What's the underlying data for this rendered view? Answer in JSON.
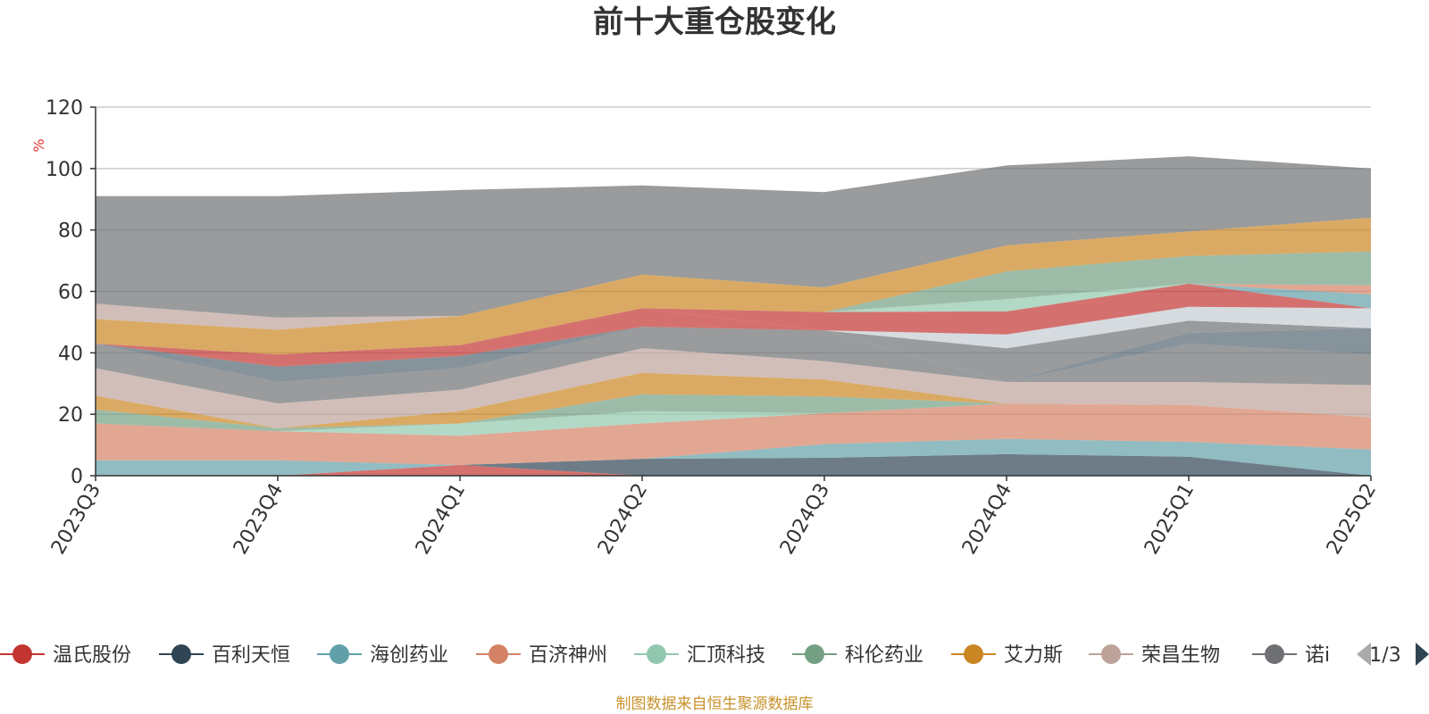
{
  "chart_data": {
    "type": "area",
    "title": "前十大重仓股变化",
    "ylabel": "%",
    "xlabel": "",
    "ylim": [
      0,
      120
    ],
    "yticks": [
      0,
      20,
      40,
      60,
      80,
      100,
      120
    ],
    "grid": true,
    "stacked": true,
    "categories": [
      "2023Q3",
      "2023Q4",
      "2024Q1",
      "2024Q2",
      "2024Q3",
      "2024Q4",
      "2025Q1",
      "2025Q2"
    ],
    "series": [
      {
        "name": "温氏股份",
        "color": "#c23531",
        "values": [
          0,
          0,
          3.5,
          0,
          0,
          0,
          0,
          0
        ]
      },
      {
        "name": "百利天恒",
        "color": "#2f4554",
        "values": [
          0,
          0,
          0,
          5.5,
          5.8,
          7,
          6.2,
          0
        ]
      },
      {
        "name": "海创药业",
        "color": "#61a0a8",
        "values": [
          5,
          5,
          0,
          0,
          4.5,
          5,
          4.8,
          8.5
        ]
      },
      {
        "name": "百济神州",
        "color": "#d48265",
        "values": [
          12,
          9.5,
          9.5,
          11.5,
          10,
          11.5,
          12,
          10.5
        ]
      },
      {
        "name": "汇顶科技",
        "color": "#91c7ae",
        "values": [
          0,
          0,
          4,
          4,
          0,
          0,
          0,
          0
        ]
      },
      {
        "name": "科伦药业",
        "color": "#749f83",
        "values": [
          4.5,
          1,
          0,
          5.5,
          5.5,
          0,
          0,
          0
        ]
      },
      {
        "name": "艾力斯",
        "color": "#ca8622",
        "values": [
          4.5,
          0,
          4,
          7,
          5.5,
          0,
          0,
          0
        ]
      },
      {
        "name": "荣昌生物",
        "color": "#bda29a",
        "values": [
          9,
          8,
          7,
          8,
          6,
          7,
          7.5,
          10.5
        ]
      },
      {
        "name": "诺诚健华",
        "color": "#6e7074",
        "values": [
          8,
          7,
          7,
          7,
          10,
          0,
          12.5,
          10
        ]
      },
      {
        "name": "",
        "color": "#546570",
        "values": [
          0,
          5,
          4,
          0,
          0,
          0,
          3.5,
          8.5
        ]
      },
      {
        "name": "",
        "color": "#c23531",
        "values": [
          0,
          4,
          3.5,
          6,
          0,
          0,
          0,
          0
        ]
      },
      {
        "name": "",
        "color": "#6e7074",
        "values": [
          0,
          0,
          0,
          0,
          0,
          11,
          4,
          0
        ]
      },
      {
        "name": "",
        "color": "#c4ccd3",
        "values": [
          0,
          0,
          0,
          0,
          0,
          4.5,
          4.5,
          6.5
        ]
      },
      {
        "name": "",
        "color": "#c23531",
        "values": [
          0,
          0,
          0,
          0,
          6,
          7.5,
          7.5,
          0
        ]
      },
      {
        "name": "",
        "color": "#91c7ae",
        "values": [
          0,
          0,
          0,
          0,
          0,
          4,
          0,
          0
        ]
      },
      {
        "name": "",
        "color": "#61a0a8",
        "values": [
          0,
          0,
          0,
          0,
          0,
          0,
          0,
          4.5
        ]
      },
      {
        "name": "",
        "color": "#d48265",
        "values": [
          0,
          0,
          0,
          0,
          0,
          0,
          0,
          3
        ]
      },
      {
        "name": "",
        "color": "#749f83",
        "values": [
          0,
          0,
          0,
          0,
          0,
          9,
          9,
          11
        ]
      },
      {
        "name": "",
        "color": "#ca8622",
        "values": [
          8,
          8,
          9.5,
          11,
          8,
          8.5,
          8,
          11
        ]
      },
      {
        "name": "",
        "color": "#bda29a",
        "values": [
          5,
          4,
          0,
          0,
          0,
          0,
          0,
          0
        ]
      },
      {
        "name": "",
        "color": "#6e7074",
        "values": [
          35,
          39.5,
          41,
          29,
          31,
          26,
          24.5,
          16
        ]
      }
    ]
  },
  "legend": {
    "items": [
      {
        "label": "温氏股份",
        "color": "#c23531"
      },
      {
        "label": "百利天恒",
        "color": "#2f4554"
      },
      {
        "label": "海创药业",
        "color": "#61a0a8"
      },
      {
        "label": "百济神州",
        "color": "#d48265"
      },
      {
        "label": "汇顶科技",
        "color": "#91c7ae"
      },
      {
        "label": "科伦药业",
        "color": "#749f83"
      },
      {
        "label": "艾力斯",
        "color": "#ca8622"
      },
      {
        "label": "荣昌生物",
        "color": "#bda29a"
      },
      {
        "label": "诺i",
        "color": "#6e7074"
      }
    ],
    "page_indicator": "1/3",
    "prev_icon": "triangle-left-icon",
    "next_icon": "triangle-right-icon"
  },
  "footer": {
    "source": "制图数据来自恒生聚源数据库"
  }
}
